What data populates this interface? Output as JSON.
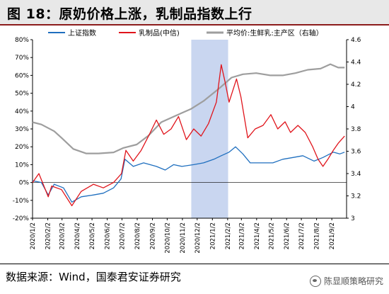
{
  "title": "图 18：原奶价格上涨，乳制品指数上行",
  "source": "数据来源：Wind，国泰君安证券研究",
  "watermark": "陈显顺策略研究",
  "colors": {
    "index": "#1f6fbf",
    "dairy": "#e0141b",
    "milk": "#9e9e9e",
    "shade": "#c9d6f0"
  },
  "chart_data": {
    "type": "line",
    "x_dates": [
      "2020/1/2",
      "2020/2/2",
      "2020/3/2",
      "2020/4/2",
      "2020/5/2",
      "2020/6/2",
      "2020/7/2",
      "2020/8/2",
      "2020/9/2",
      "2020/10/2",
      "2020/11/2",
      "2020/12/2",
      "2021/1/2",
      "2021/2/2",
      "2021/3/2",
      "2021/4/2",
      "2021/5/2",
      "2021/6/2",
      "2021/7/2",
      "2021/8/2",
      "2021/9/2"
    ],
    "shaded_range": [
      "2020/11/20",
      "2021/2/3"
    ],
    "y_left": {
      "ticks": [
        "-20%",
        "-10%",
        "0%",
        "10%",
        "20%",
        "30%",
        "40%",
        "50%",
        "60%",
        "70%",
        "80%"
      ],
      "min": -20,
      "max": 80
    },
    "y_right": {
      "ticks": [
        "3",
        "3.2",
        "3.4",
        "3.6",
        "3.8",
        "4",
        "4.2",
        "4.4",
        "4.6"
      ],
      "min": 3,
      "max": 4.6
    },
    "series": [
      {
        "name": "上证指数",
        "axis": "left",
        "points": [
          [
            "2020/1/2",
            1
          ],
          [
            "2020/1/20",
            0
          ],
          [
            "2020/2/3",
            -7
          ],
          [
            "2020/2/15",
            -1
          ],
          [
            "2020/3/5",
            -3
          ],
          [
            "2020/3/22",
            -11
          ],
          [
            "2020/4/10",
            -8
          ],
          [
            "2020/5/5",
            -7
          ],
          [
            "2020/5/25",
            -6
          ],
          [
            "2020/6/15",
            -3
          ],
          [
            "2020/6/30",
            2
          ],
          [
            "2020/7/8",
            13
          ],
          [
            "2020/7/25",
            9
          ],
          [
            "2020/8/15",
            11
          ],
          [
            "2020/9/10",
            9
          ],
          [
            "2020/9/28",
            7
          ],
          [
            "2020/10/15",
            10
          ],
          [
            "2020/11/1",
            9
          ],
          [
            "2020/11/25",
            10
          ],
          [
            "2020/12/15",
            11
          ],
          [
            "2021/1/5",
            13
          ],
          [
            "2021/1/20",
            15
          ],
          [
            "2021/2/5",
            17
          ],
          [
            "2021/2/18",
            20
          ],
          [
            "2021/3/5",
            16
          ],
          [
            "2021/3/20",
            11
          ],
          [
            "2021/4/10",
            11
          ],
          [
            "2021/5/5",
            11
          ],
          [
            "2021/5/25",
            13
          ],
          [
            "2021/6/15",
            14
          ],
          [
            "2021/7/5",
            15
          ],
          [
            "2021/7/28",
            12
          ],
          [
            "2021/8/15",
            14
          ],
          [
            "2021/9/5",
            17
          ],
          [
            "2021/9/18",
            16
          ],
          [
            "2021/9/28",
            17
          ]
        ]
      },
      {
        "name": "乳制品(中信)",
        "axis": "left",
        "points": [
          [
            "2020/1/2",
            0
          ],
          [
            "2020/1/15",
            5
          ],
          [
            "2020/2/3",
            -8
          ],
          [
            "2020/2/10",
            -2
          ],
          [
            "2020/3/1",
            -4
          ],
          [
            "2020/3/22",
            -13
          ],
          [
            "2020/4/10",
            -5
          ],
          [
            "2020/5/5",
            -1
          ],
          [
            "2020/5/25",
            -3
          ],
          [
            "2020/6/15",
            0
          ],
          [
            "2020/7/1",
            5
          ],
          [
            "2020/7/10",
            18
          ],
          [
            "2020/7/25",
            12
          ],
          [
            "2020/8/10",
            18
          ],
          [
            "2020/8/25",
            26
          ],
          [
            "2020/9/10",
            35
          ],
          [
            "2020/9/25",
            27
          ],
          [
            "2020/10/10",
            30
          ],
          [
            "2020/10/25",
            37
          ],
          [
            "2020/11/10",
            24
          ],
          [
            "2020/11/25",
            30
          ],
          [
            "2020/12/10",
            26
          ],
          [
            "2020/12/25",
            33
          ],
          [
            "2021/1/10",
            45
          ],
          [
            "2021/1/20",
            66
          ],
          [
            "2021/1/28",
            56
          ],
          [
            "2021/2/5",
            45
          ],
          [
            "2021/2/20",
            58
          ],
          [
            "2021/3/1",
            48
          ],
          [
            "2021/3/15",
            25
          ],
          [
            "2021/3/30",
            30
          ],
          [
            "2021/4/15",
            32
          ],
          [
            "2021/5/1",
            38
          ],
          [
            "2021/5/15",
            30
          ],
          [
            "2021/5/30",
            34
          ],
          [
            "2021/6/10",
            28
          ],
          [
            "2021/6/25",
            32
          ],
          [
            "2021/7/10",
            28
          ],
          [
            "2021/7/25",
            20
          ],
          [
            "2021/8/5",
            13
          ],
          [
            "2021/8/15",
            9
          ],
          [
            "2021/8/25",
            13
          ],
          [
            "2021/9/5",
            18
          ],
          [
            "2021/9/15",
            22
          ],
          [
            "2021/9/28",
            26
          ]
        ]
      },
      {
        "name": "平均价:生鲜乳:主产区（右轴）",
        "axis": "right",
        "points": [
          [
            "2020/1/2",
            3.86
          ],
          [
            "2020/1/20",
            3.84
          ],
          [
            "2020/2/15",
            3.78
          ],
          [
            "2020/3/1",
            3.72
          ],
          [
            "2020/3/25",
            3.62
          ],
          [
            "2020/4/20",
            3.58
          ],
          [
            "2020/5/15",
            3.58
          ],
          [
            "2020/6/15",
            3.59
          ],
          [
            "2020/7/5",
            3.63
          ],
          [
            "2020/8/1",
            3.66
          ],
          [
            "2020/8/25",
            3.74
          ],
          [
            "2020/9/20",
            3.86
          ],
          [
            "2020/10/20",
            3.92
          ],
          [
            "2020/11/20",
            3.98
          ],
          [
            "2020/12/15",
            4.05
          ],
          [
            "2021/1/15",
            4.16
          ],
          [
            "2021/2/10",
            4.26
          ],
          [
            "2021/3/5",
            4.29
          ],
          [
            "2021/4/1",
            4.3
          ],
          [
            "2021/4/30",
            4.28
          ],
          [
            "2021/5/25",
            4.28
          ],
          [
            "2021/6/20",
            4.3
          ],
          [
            "2021/7/15",
            4.33
          ],
          [
            "2021/8/10",
            4.34
          ],
          [
            "2021/8/30",
            4.38
          ],
          [
            "2021/9/15",
            4.35
          ],
          [
            "2021/9/28",
            4.35
          ]
        ]
      }
    ]
  }
}
